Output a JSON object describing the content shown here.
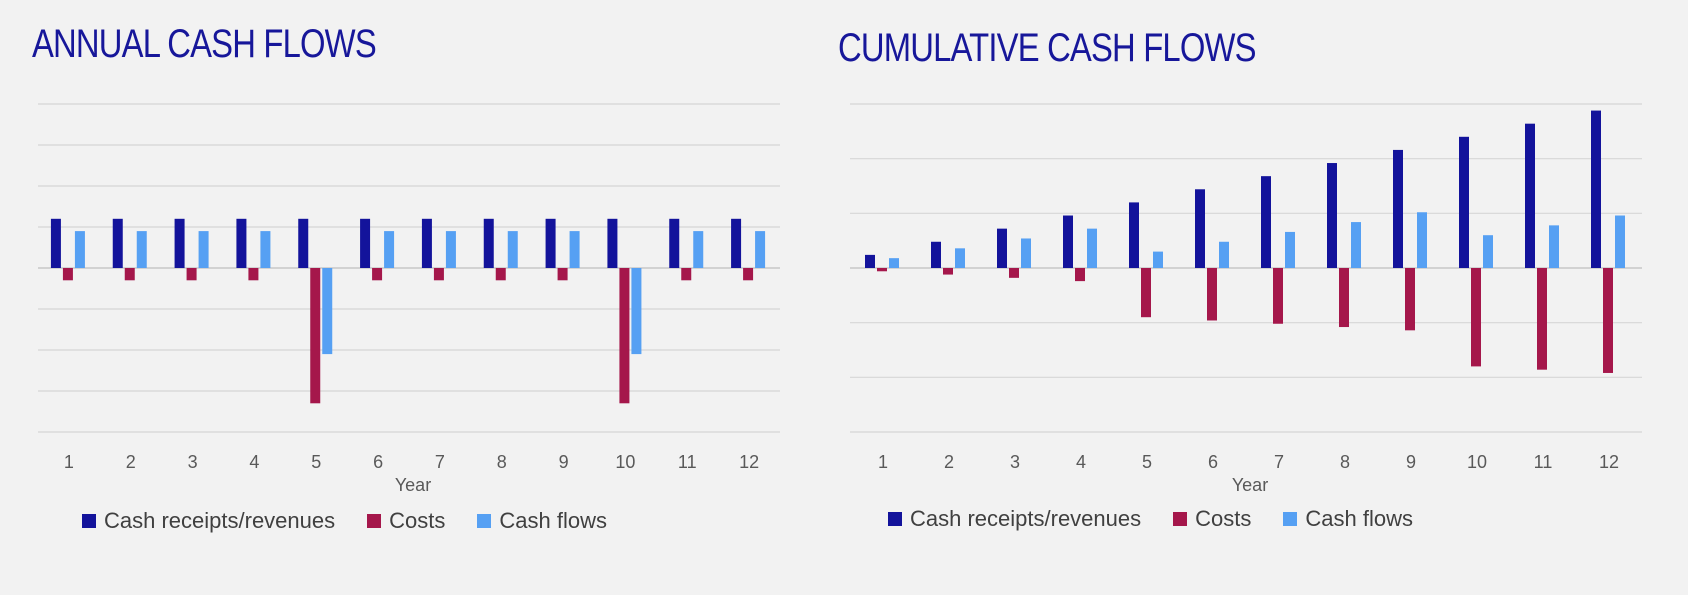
{
  "chart_data": [
    {
      "type": "bar",
      "title": "ANNUAL CASH FLOWS",
      "xlabel": "Year",
      "ylabel": "",
      "categories": [
        "1",
        "2",
        "3",
        "4",
        "5",
        "6",
        "7",
        "8",
        "9",
        "10",
        "11",
        "12"
      ],
      "ylim": [
        -4,
        4
      ],
      "gridlines": [
        4,
        3,
        2,
        1,
        0,
        -1,
        -2,
        -3,
        -4
      ],
      "y_tick_labels_shown": false,
      "grid": true,
      "legend_position": "bottom",
      "series": [
        {
          "name": "Cash receipts/revenues",
          "color": "#13139b",
          "values": [
            1.2,
            1.2,
            1.2,
            1.2,
            1.2,
            1.2,
            1.2,
            1.2,
            1.2,
            1.2,
            1.2,
            1.2
          ]
        },
        {
          "name": "Costs",
          "color": "#a5174b",
          "values": [
            -0.3,
            -0.3,
            -0.3,
            -0.3,
            -3.3,
            -0.3,
            -0.3,
            -0.3,
            -0.3,
            -3.3,
            -0.3,
            -0.3
          ]
        },
        {
          "name": "Cash flows",
          "color": "#56a0f3",
          "values": [
            0.9,
            0.9,
            0.9,
            0.9,
            -2.1,
            0.9,
            0.9,
            0.9,
            0.9,
            -2.1,
            0.9,
            0.9
          ]
        }
      ]
    },
    {
      "type": "bar",
      "title": "CUMULATIVE CASH FLOWS",
      "xlabel": "Year",
      "ylabel": "",
      "categories": [
        "1",
        "2",
        "3",
        "4",
        "5",
        "6",
        "7",
        "8",
        "9",
        "10",
        "11",
        "12"
      ],
      "ylim": [
        -15,
        15
      ],
      "gridlines": [
        15,
        10,
        5,
        0,
        -5,
        -10,
        -15
      ],
      "y_tick_labels_shown": false,
      "grid": true,
      "legend_position": "bottom",
      "series": [
        {
          "name": "Cash receipts/revenues",
          "color": "#13139b",
          "values": [
            1.2,
            2.4,
            3.6,
            4.8,
            6.0,
            7.2,
            8.4,
            9.6,
            10.8,
            12.0,
            13.2,
            14.4
          ]
        },
        {
          "name": "Costs",
          "color": "#a5174b",
          "values": [
            -0.3,
            -0.6,
            -0.9,
            -1.2,
            -4.5,
            -4.8,
            -5.1,
            -5.4,
            -5.7,
            -9.0,
            -9.3,
            -9.6
          ]
        },
        {
          "name": "Cash flows",
          "color": "#56a0f3",
          "values": [
            0.9,
            1.8,
            2.7,
            3.6,
            1.5,
            2.4,
            3.3,
            4.2,
            5.1,
            3.0,
            3.9,
            4.8
          ]
        }
      ]
    }
  ]
}
